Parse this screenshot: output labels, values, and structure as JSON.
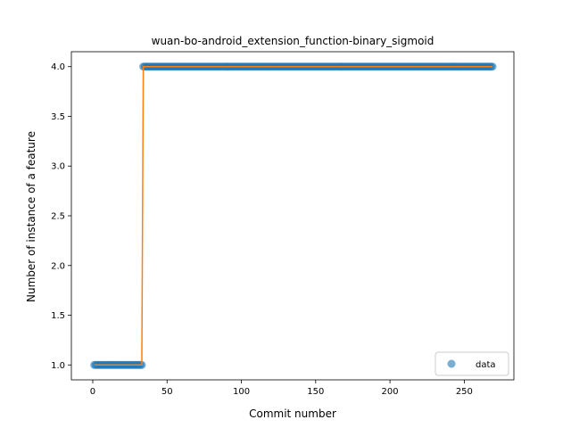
{
  "chart_data": {
    "type": "scatter",
    "title": "wuan-bo-android_extension_function-binary_sigmoid",
    "xlabel": "Commit number",
    "ylabel": "Number of instance of a feature",
    "xlim": [
      -14.4,
      283.4
    ],
    "ylim": [
      0.85,
      4.15
    ],
    "xticks": [
      0,
      50,
      100,
      150,
      200,
      250
    ],
    "yticks": [
      1.0,
      1.5,
      2.0,
      2.5,
      3.0,
      3.5,
      4.0
    ],
    "xtick_labels": [
      "0",
      "50",
      "100",
      "150",
      "200",
      "250"
    ],
    "ytick_labels": [
      "1.0",
      "1.5",
      "2.0",
      "2.5",
      "3.0",
      "3.5",
      "4.0"
    ],
    "legend": {
      "position": "lower-right",
      "entries": [
        "data"
      ]
    },
    "series": [
      {
        "name": "data",
        "kind": "scatter",
        "color": "#1f77b4",
        "segments": [
          {
            "x_start": 1,
            "x_end": 33,
            "y": 1
          },
          {
            "x_start": 34,
            "x_end": 269,
            "y": 4
          }
        ]
      },
      {
        "kind": "line",
        "color": "#ff7f0e",
        "points": [
          [
            1,
            1
          ],
          [
            33,
            1
          ],
          [
            34,
            4
          ],
          [
            269,
            4
          ]
        ]
      }
    ]
  }
}
